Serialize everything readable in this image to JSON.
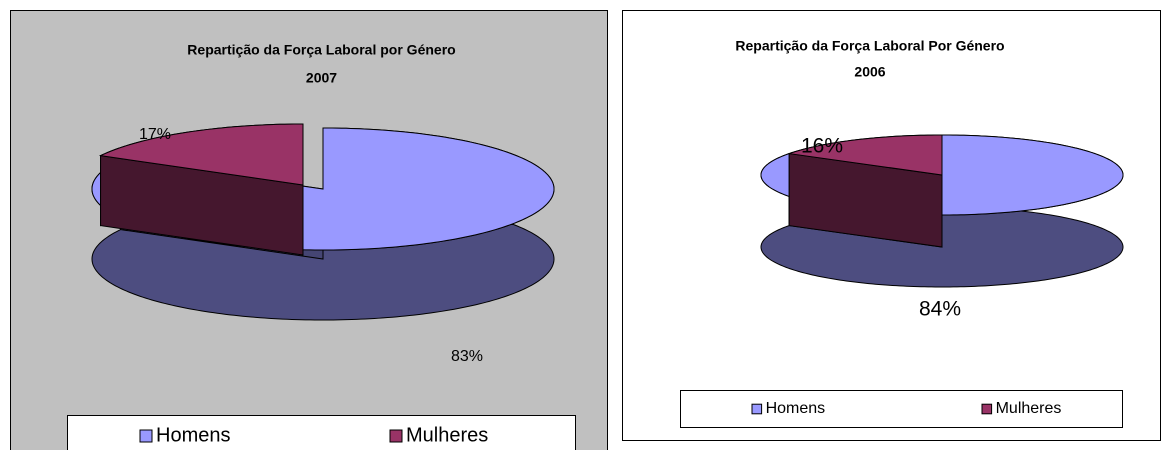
{
  "chart_data": [
    {
      "type": "pie3d",
      "title": "Repartição da Força Laboral por Género",
      "subtitle": "2007",
      "categories": [
        "Homens",
        "Mulheres"
      ],
      "values": [
        83,
        17
      ],
      "value_labels": [
        "83%",
        "17%"
      ],
      "colors": [
        "#9999ff",
        "#993366"
      ],
      "legend": "bottom"
    },
    {
      "type": "pie3d",
      "title": "Repartição da Força Laboral Por Género",
      "subtitle": "2006",
      "categories": [
        "Homens",
        "Mulheres"
      ],
      "values": [
        84,
        16
      ],
      "value_labels": [
        "84%",
        "16%"
      ],
      "colors": [
        "#9999ff",
        "#993366"
      ],
      "legend": "bottom"
    }
  ]
}
